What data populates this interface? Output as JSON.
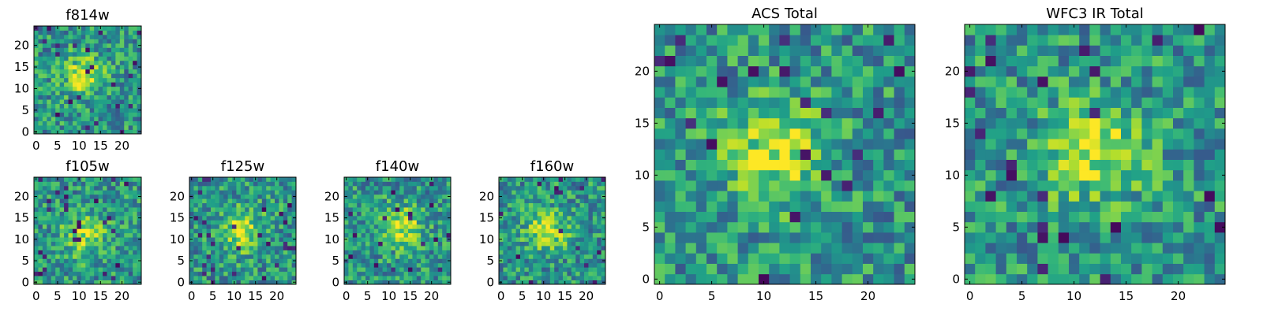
{
  "chart_data": [
    {
      "type": "heatmap",
      "title": "f814w",
      "grid_size": 25,
      "x_ticks": [
        0,
        5,
        10,
        15,
        20
      ],
      "y_ticks": [
        0,
        5,
        10,
        15,
        20
      ],
      "center": [
        11,
        13
      ],
      "colormap": "viridis"
    },
    {
      "type": "heatmap",
      "title": "f105w",
      "grid_size": 25,
      "x_ticks": [
        0,
        5,
        10,
        15,
        20
      ],
      "y_ticks": [
        0,
        5,
        10,
        15,
        20
      ],
      "center": [
        11,
        11
      ],
      "colormap": "viridis"
    },
    {
      "type": "heatmap",
      "title": "f125w",
      "grid_size": 25,
      "x_ticks": [
        0,
        5,
        10,
        15,
        20
      ],
      "y_ticks": [
        0,
        5,
        10,
        15,
        20
      ],
      "center": [
        12,
        12
      ],
      "colormap": "viridis"
    },
    {
      "type": "heatmap",
      "title": "f140w",
      "grid_size": 25,
      "x_ticks": [
        0,
        5,
        10,
        15,
        20
      ],
      "y_ticks": [
        0,
        5,
        10,
        15,
        20
      ],
      "center": [
        13,
        13
      ],
      "colormap": "viridis"
    },
    {
      "type": "heatmap",
      "title": "f160w",
      "grid_size": 25,
      "x_ticks": [
        0,
        5,
        10,
        15,
        20
      ],
      "y_ticks": [
        0,
        5,
        10,
        15,
        20
      ],
      "center": [
        11,
        12
      ],
      "colormap": "viridis"
    },
    {
      "type": "heatmap",
      "title": "ACS Total",
      "grid_size": 25,
      "x_ticks": [
        0,
        5,
        10,
        15,
        20
      ],
      "y_ticks": [
        0,
        5,
        10,
        15,
        20
      ],
      "center": [
        11,
        12
      ],
      "colormap": "viridis"
    },
    {
      "type": "heatmap",
      "title": "WFC3 IR Total",
      "grid_size": 25,
      "x_ticks": [
        0,
        5,
        10,
        15,
        20
      ],
      "y_ticks": [
        0,
        5,
        10,
        15,
        20
      ],
      "center": [
        12,
        12
      ],
      "colormap": "viridis"
    }
  ]
}
